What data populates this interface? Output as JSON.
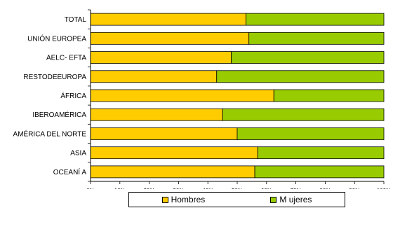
{
  "chart_data": {
    "type": "bar",
    "orientation": "horizontal",
    "stacked": true,
    "percent": true,
    "categories": [
      "TOTAL",
      "UNIÓN EUROPEA",
      "AELC- EFTA",
      "RESTODEEUROPA",
      "ÁFRICA",
      "IBEROAMÉRICA",
      "AMÉRICA DEL NORTE",
      "ASIA",
      "OCEANÍ A"
    ],
    "series": [
      {
        "name": "Hombres",
        "color": "#FFCC00",
        "values": [
          53,
          54,
          48,
          43,
          62.5,
          45,
          50,
          57,
          56
        ]
      },
      {
        "name": "M ujeres",
        "color": "#99CC00",
        "values": [
          47,
          46,
          52,
          57,
          37.5,
          55,
          50,
          43,
          44
        ]
      }
    ],
    "xlim": [
      0,
      100
    ],
    "xticks": [
      "0%",
      "10%",
      "20%",
      "30%",
      "40%",
      "50%",
      "60%",
      "70%",
      "80%",
      "90%",
      "100%"
    ],
    "grid": false,
    "legend_position": "bottom"
  },
  "legend": {
    "hombres_label": "Hombres",
    "mujeres_label": "M ujeres"
  }
}
